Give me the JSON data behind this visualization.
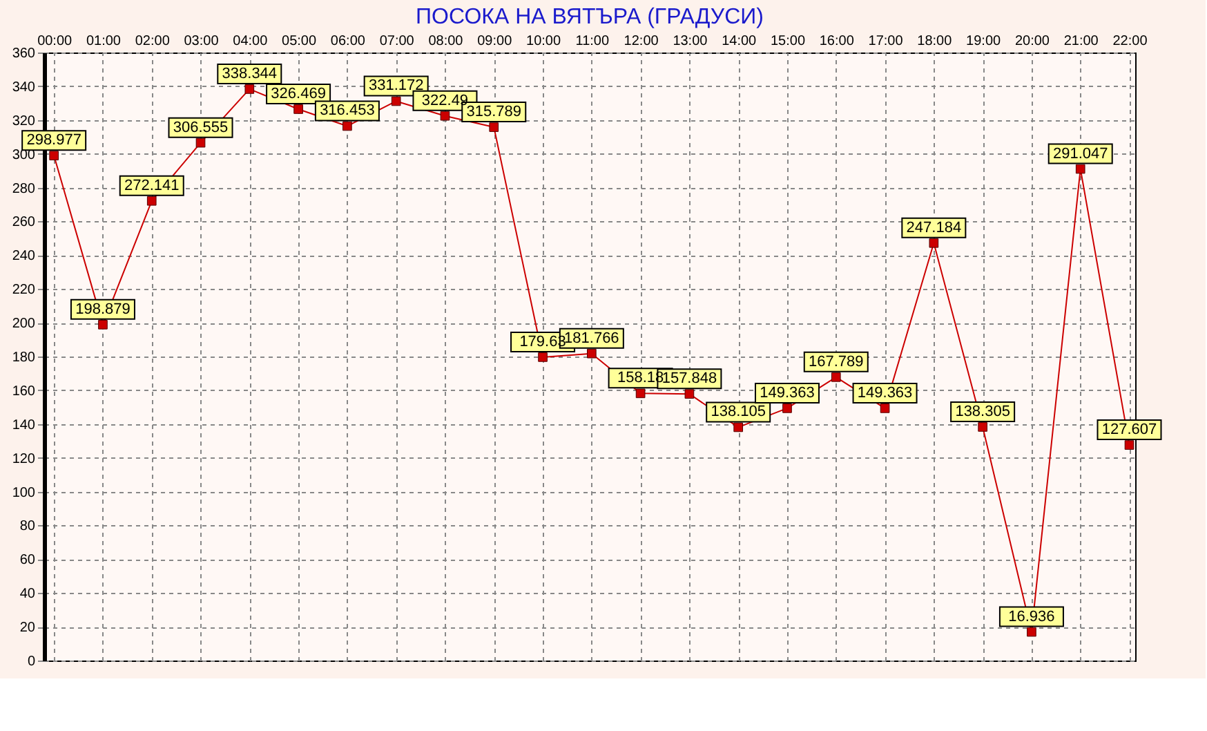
{
  "chart_data": {
    "type": "line",
    "title": "ПОСОКА НА ВЯТЪРА    (ГРАДУСИ)",
    "categories": [
      "00:00",
      "01:00",
      "02:00",
      "03:00",
      "04:00",
      "05:00",
      "06:00",
      "07:00",
      "08:00",
      "09:00",
      "10:00",
      "11:00",
      "12:00",
      "13:00",
      "14:00",
      "15:00",
      "16:00",
      "17:00",
      "18:00",
      "19:00",
      "20:00",
      "21:00",
      "22:00"
    ],
    "series": [
      {
        "color": "#cc0000",
        "values": [
          298.977,
          198.879,
          272.141,
          306.555,
          338.344,
          326.469,
          316.453,
          331.172,
          322.49,
          315.789,
          179.63,
          181.766,
          158.18,
          157.848,
          138.105,
          149.363,
          167.789,
          149.363,
          247.184,
          138.305,
          16.936,
          291.047,
          127.607
        ]
      }
    ],
    "ylim": [
      0,
      360
    ],
    "yticks": [
      0,
      20,
      40,
      60,
      80,
      100,
      120,
      140,
      160,
      180,
      200,
      220,
      240,
      260,
      280,
      300,
      320,
      340,
      360
    ],
    "grid": true,
    "marker": "square",
    "line_style": "solid",
    "data_labels": true
  }
}
